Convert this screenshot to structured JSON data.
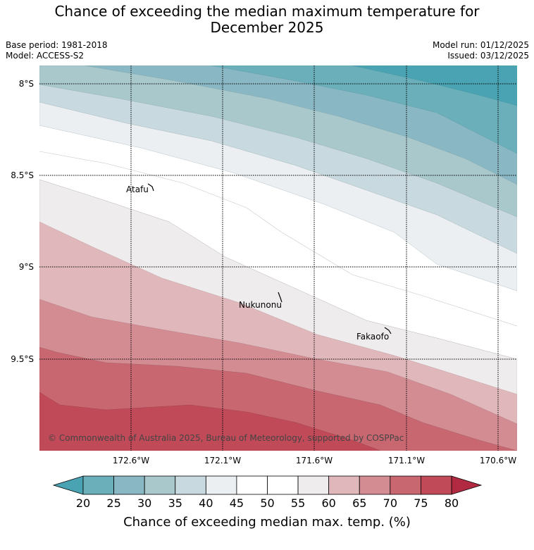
{
  "title_line1": "Chance of exceeding the median maximum temperature for",
  "title_line2": "December 2025",
  "base_period": "Base period: 1981-2018",
  "model": "Model: ACCESS-S2",
  "model_run": "Model run: 01/12/2025",
  "issued": "Issued: 03/12/2025",
  "copyright": "© Commonwealth of Australia 2025, Bureau of Meteorology, supported by COSPPac",
  "lat_labels": [
    "8°S",
    "8.5°S",
    "9°S",
    "9.5°S"
  ],
  "lon_labels": [
    "172.6°W",
    "172.1°W",
    "171.6°W",
    "171.1°W",
    "170.6°W"
  ],
  "places": {
    "atafu": "Atafu",
    "nukunonu": "Nukunonu",
    "fakaofo": "Fakaofo"
  },
  "colorbar": {
    "label": "Chance of exceeding median max. temp. (%)",
    "ticks": [
      "20",
      "25",
      "30",
      "35",
      "40",
      "45",
      "50",
      "55",
      "60",
      "65",
      "70",
      "75",
      "80"
    ],
    "colors": [
      "#4aa3b2",
      "#6aafba",
      "#8ab7c4",
      "#a8c8cc",
      "#c8dadf",
      "#ebeff2",
      "#ffffff",
      "#ffffff",
      "#efeced",
      "#e0b8bc",
      "#d48c93",
      "#c96771",
      "#c04a58",
      "#b22a42"
    ]
  }
}
